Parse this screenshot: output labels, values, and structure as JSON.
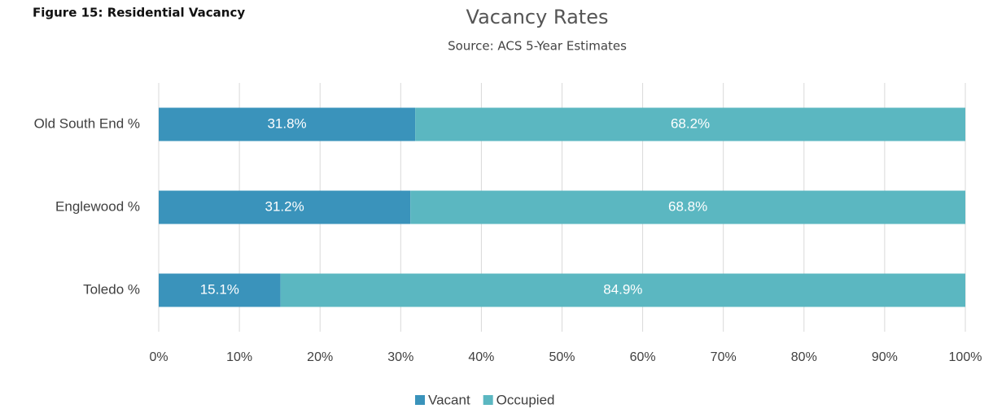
{
  "chart_data": {
    "type": "bar",
    "orientation": "horizontal",
    "stacked": true,
    "annotation": "Figure 15:  Residential Vacancy",
    "title": "Vacancy Rates",
    "subtitle": "Source: ACS 5-Year Estimates",
    "categories": [
      "Old South End %",
      "Englewood %",
      "Toledo %"
    ],
    "series": [
      {
        "name": "Vacant",
        "color": "#3a93bb",
        "values": [
          31.8,
          31.2,
          15.1
        ],
        "value_labels": [
          "31.8%",
          "31.2%",
          "15.1%"
        ]
      },
      {
        "name": "Occupied",
        "color": "#5bb7c1",
        "values": [
          68.2,
          68.8,
          84.9
        ],
        "value_labels": [
          "68.2%",
          "68.8%",
          "84.9%"
        ]
      }
    ],
    "xlim": [
      0,
      100
    ],
    "xticks": [
      {
        "value": 0,
        "label": "0%"
      },
      {
        "value": 10,
        "label": "10%"
      },
      {
        "value": 20,
        "label": "20%"
      },
      {
        "value": 30,
        "label": "30%"
      },
      {
        "value": 40,
        "label": "40%"
      },
      {
        "value": 50,
        "label": "50%"
      },
      {
        "value": 60,
        "label": "60%"
      },
      {
        "value": 70,
        "label": "70%"
      },
      {
        "value": 80,
        "label": "80%"
      },
      {
        "value": 90,
        "label": "90%"
      },
      {
        "value": 100,
        "label": "100%"
      }
    ],
    "grid": true,
    "legend": "bottom"
  }
}
